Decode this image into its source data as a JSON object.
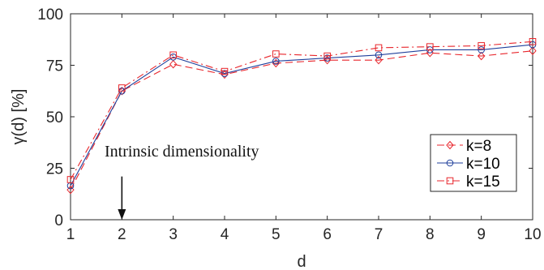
{
  "chart_data": {
    "type": "line",
    "title": "",
    "xlabel": "d",
    "ylabel": "γ(d) [%]",
    "xlim": [
      1,
      10
    ],
    "ylim": [
      0,
      100
    ],
    "xticks": [
      "1",
      "2",
      "3",
      "4",
      "5",
      "6",
      "7",
      "8",
      "9",
      "10"
    ],
    "yticks": [
      "0",
      "25",
      "50",
      "75",
      "100"
    ],
    "grid": false,
    "legend_position": "middle-right",
    "x": [
      1,
      2,
      3,
      4,
      5,
      6,
      7,
      8,
      9,
      10
    ],
    "series": [
      {
        "name": "k=8",
        "values": [
          14.5,
          62.5,
          75.5,
          70.5,
          76,
          77.5,
          77.5,
          81,
          79.5,
          82
        ],
        "color": "#e8262c",
        "dash": "dashed",
        "marker": "diamond"
      },
      {
        "name": "k=10",
        "values": [
          16.5,
          62.5,
          79,
          71,
          77,
          78.5,
          80,
          82.5,
          82.5,
          85
        ],
        "color": "#1f3f9b",
        "dash": "solid",
        "marker": "circle"
      },
      {
        "name": "k=15",
        "values": [
          19.5,
          64,
          80,
          72,
          80.5,
          79.5,
          83.5,
          84,
          84.5,
          86.5
        ],
        "color": "#e8262c",
        "dash": "dashdot",
        "marker": "square"
      }
    ],
    "annotation": {
      "text": "Intrinsic dimensionality",
      "x": 2,
      "arrow_from_y": 21,
      "arrow_to_y": 0
    }
  }
}
